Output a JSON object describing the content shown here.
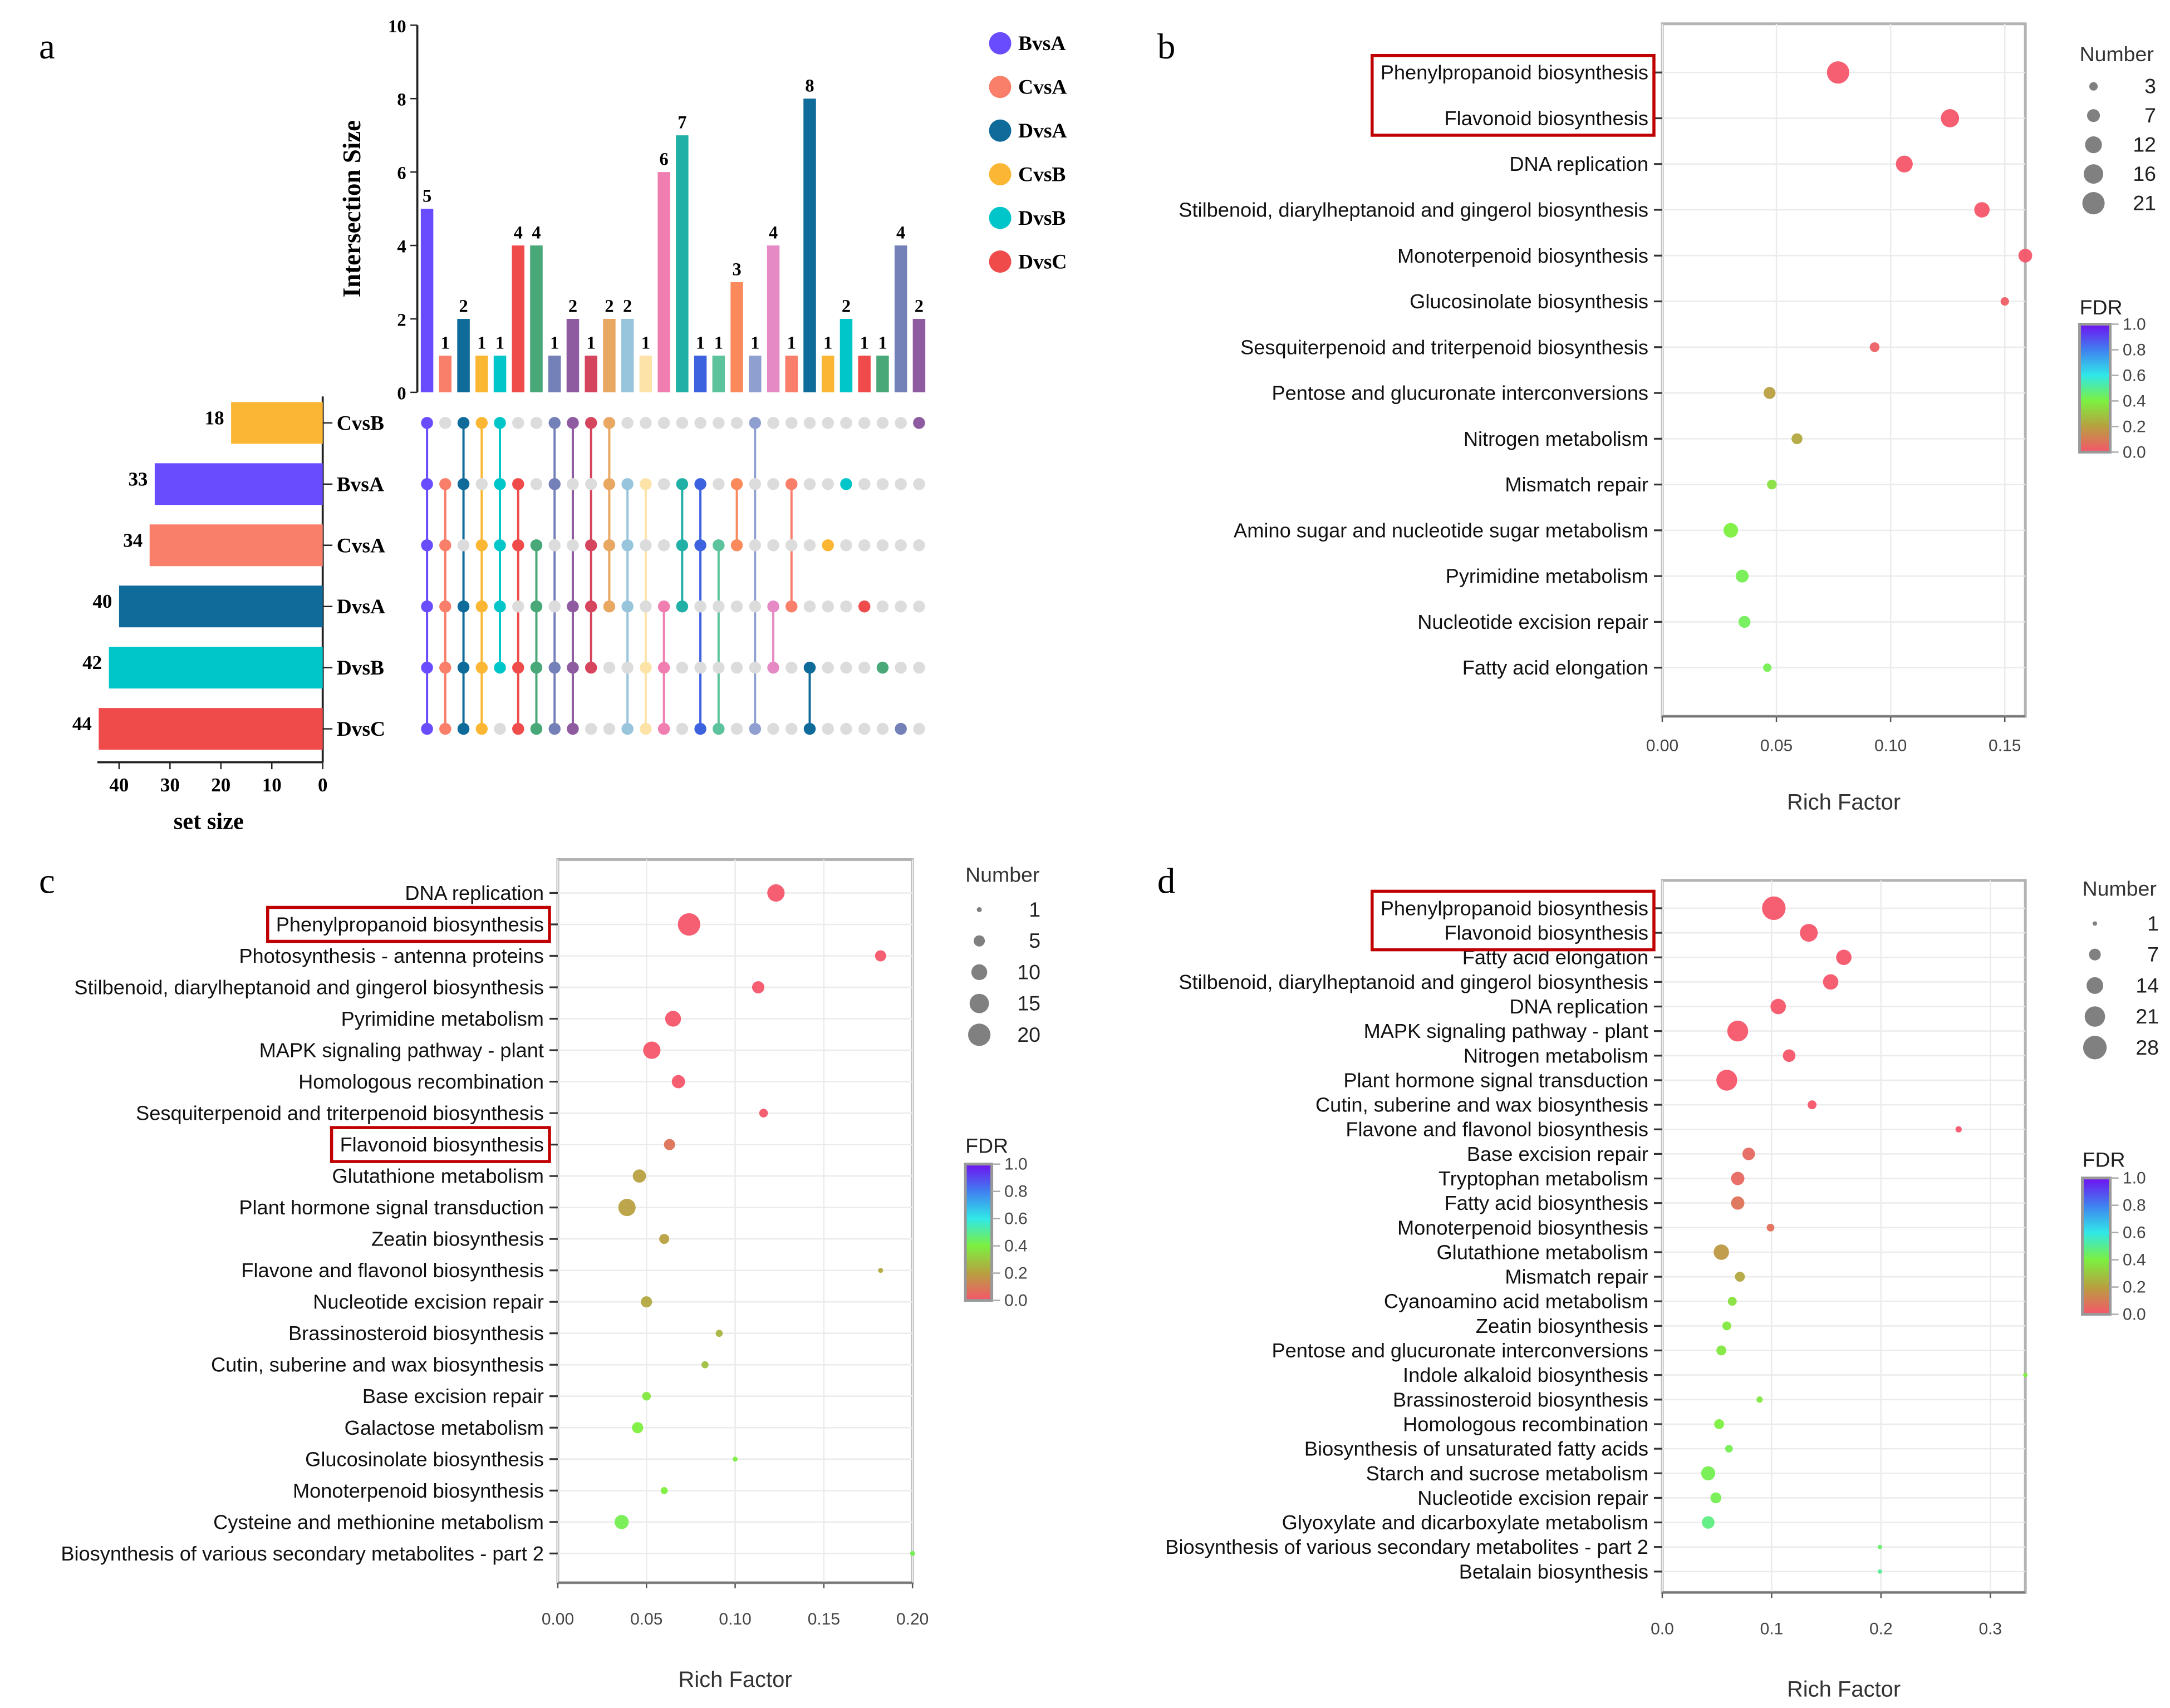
{
  "panel_letters": [
    "a",
    "b",
    "c",
    "d"
  ],
  "chart_data": [
    {
      "type": "bar",
      "panel": "a",
      "ylabel": "Intersection Size",
      "ylim": [
        0,
        10
      ],
      "yticks": [
        0,
        2,
        4,
        6,
        8,
        10
      ],
      "sets": [
        {
          "name": "CvsB",
          "size": 18,
          "color": "#fbb733"
        },
        {
          "name": "BvsA",
          "size": 33,
          "color": "#6a4cff"
        },
        {
          "name": "CvsA",
          "size": 34,
          "color": "#fa7f6a"
        },
        {
          "name": "DvsA",
          "size": 40,
          "color": "#0e6b9a"
        },
        {
          "name": "DvsB",
          "size": 42,
          "color": "#00c5c9"
        },
        {
          "name": "DvsC",
          "size": 44,
          "color": "#f04b4b"
        }
      ],
      "set_size_label": "set size",
      "set_size_ticks": [
        40,
        30,
        20,
        10,
        0
      ],
      "legend": [
        {
          "name": "BvsA",
          "color": "#6a4cff"
        },
        {
          "name": "CvsA",
          "color": "#fa7f6a"
        },
        {
          "name": "DvsA",
          "color": "#0e6b9a"
        },
        {
          "name": "CvsB",
          "color": "#fbb733"
        },
        {
          "name": "DvsB",
          "color": "#00c5c9"
        },
        {
          "name": "DvsC",
          "color": "#f04b4b"
        }
      ],
      "intersections": [
        {
          "size": 5,
          "color": "#6a4cff",
          "members": [
            "CvsB",
            "BvsA",
            "CvsA",
            "DvsA",
            "DvsB",
            "DvsC"
          ]
        },
        {
          "size": 1,
          "color": "#fa7f6a",
          "members": [
            "BvsA",
            "CvsA",
            "DvsA",
            "DvsB",
            "DvsC"
          ]
        },
        {
          "size": 2,
          "color": "#0e6b9a",
          "members": [
            "CvsB",
            "BvsA",
            "DvsA",
            "DvsB",
            "DvsC"
          ]
        },
        {
          "size": 1,
          "color": "#fbb733",
          "members": [
            "CvsB",
            "CvsA",
            "DvsA",
            "DvsB",
            "DvsC"
          ]
        },
        {
          "size": 1,
          "color": "#00c5c9",
          "members": [
            "CvsB",
            "BvsA",
            "CvsA",
            "DvsA",
            "DvsB"
          ]
        },
        {
          "size": 4,
          "color": "#f04b4b",
          "members": [
            "BvsA",
            "CvsA",
            "DvsB",
            "DvsC"
          ]
        },
        {
          "size": 4,
          "color": "#48a878",
          "members": [
            "CvsA",
            "DvsA",
            "DvsB",
            "DvsC"
          ]
        },
        {
          "size": 1,
          "color": "#7480b8",
          "members": [
            "CvsB",
            "BvsA",
            "DvsB",
            "DvsC"
          ]
        },
        {
          "size": 2,
          "color": "#8e5aa0",
          "members": [
            "CvsB",
            "DvsA",
            "DvsB",
            "DvsC"
          ]
        },
        {
          "size": 1,
          "color": "#d6455e",
          "members": [
            "CvsB",
            "CvsA",
            "DvsA",
            "DvsB"
          ]
        },
        {
          "size": 2,
          "color": "#e8a862",
          "members": [
            "CvsB",
            "BvsA",
            "CvsA",
            "DvsA"
          ]
        },
        {
          "size": 2,
          "color": "#98c4dc",
          "members": [
            "BvsA",
            "CvsA",
            "DvsA",
            "DvsC"
          ]
        },
        {
          "size": 1,
          "color": "#fde3a8",
          "members": [
            "BvsA",
            "DvsB",
            "DvsC"
          ]
        },
        {
          "size": 6,
          "color": "#f07eb0",
          "members": [
            "DvsA",
            "DvsB",
            "DvsC"
          ]
        },
        {
          "size": 7,
          "color": "#20b0a6",
          "members": [
            "BvsA",
            "CvsA",
            "DvsA"
          ]
        },
        {
          "size": 1,
          "color": "#3d62e0",
          "members": [
            "BvsA",
            "CvsA",
            "DvsC"
          ]
        },
        {
          "size": 1,
          "color": "#5cc39c",
          "members": [
            "CvsA",
            "DvsC"
          ]
        },
        {
          "size": 3,
          "color": "#fa8a5c",
          "members": [
            "BvsA",
            "CvsA"
          ]
        },
        {
          "size": 1,
          "color": "#8e9fd0",
          "members": [
            "CvsB",
            "DvsC"
          ]
        },
        {
          "size": 4,
          "color": "#e58ac4",
          "members": [
            "DvsA",
            "DvsB"
          ]
        },
        {
          "size": 1,
          "color": "#fa7f6a",
          "members": [
            "BvsA",
            "DvsA"
          ]
        },
        {
          "size": 8,
          "color": "#0e6b9a",
          "members": [
            "DvsB",
            "DvsC"
          ]
        },
        {
          "size": 1,
          "color": "#fbb733",
          "members": [
            "CvsA"
          ]
        },
        {
          "size": 2,
          "color": "#00c5c9",
          "members": [
            "BvsA"
          ]
        },
        {
          "size": 1,
          "color": "#f04b4b",
          "members": [
            "DvsA"
          ]
        },
        {
          "size": 1,
          "color": "#48a878",
          "members": [
            "DvsB"
          ]
        },
        {
          "size": 4,
          "color": "#7480b8",
          "members": [
            "DvsC"
          ]
        },
        {
          "size": 2,
          "color": "#8e5aa0",
          "members": [
            "CvsB"
          ]
        }
      ]
    },
    {
      "type": "scatter",
      "panel": "b",
      "xlabel": "Rich Factor",
      "xticks": [
        "0.00",
        "0.05",
        "0.10",
        "0.15"
      ],
      "xlim": [
        0,
        0.159
      ],
      "size_legend_title": "Number",
      "size_legend": [
        3,
        7,
        12,
        16,
        21
      ],
      "color_legend_title": "FDR",
      "color_ticks": [
        "1.0",
        "0.8",
        "0.6",
        "0.4",
        "0.2",
        "0.0"
      ],
      "points": [
        {
          "term": "Phenylpropanoid biosynthesis",
          "rich_factor": 0.077,
          "number": 21,
          "fdr": 0.0,
          "highlighted": true
        },
        {
          "term": "Flavonoid biosynthesis",
          "rich_factor": 0.126,
          "number": 14,
          "fdr": 0.0,
          "highlighted": true
        },
        {
          "term": "DNA replication",
          "rich_factor": 0.106,
          "number": 12,
          "fdr": 0.0
        },
        {
          "term": "Stilbenoid, diarylheptanoid and gingerol biosynthesis",
          "rich_factor": 0.14,
          "number": 10,
          "fdr": 0.0
        },
        {
          "term": "Monoterpenoid biosynthesis",
          "rich_factor": 0.159,
          "number": 8,
          "fdr": 0.0
        },
        {
          "term": "Glucosinolate biosynthesis",
          "rich_factor": 0.15,
          "number": 3,
          "fdr": 0.02
        },
        {
          "term": "Sesquiterpenoid and triterpenoid biosynthesis",
          "rich_factor": 0.093,
          "number": 4,
          "fdr": 0.03
        },
        {
          "term": "Pentose and glucuronate interconversions",
          "rich_factor": 0.047,
          "number": 6,
          "fdr": 0.2
        },
        {
          "term": "Nitrogen metabolism",
          "rich_factor": 0.059,
          "number": 5,
          "fdr": 0.22
        },
        {
          "term": "Mismatch repair",
          "rich_factor": 0.048,
          "number": 4,
          "fdr": 0.36
        },
        {
          "term": "Amino sugar and nucleotide sugar metabolism",
          "rich_factor": 0.03,
          "number": 9,
          "fdr": 0.4
        },
        {
          "term": "Pyrimidine metabolism",
          "rich_factor": 0.035,
          "number": 7,
          "fdr": 0.42
        },
        {
          "term": "Nucleotide excision repair",
          "rich_factor": 0.036,
          "number": 6,
          "fdr": 0.43
        },
        {
          "term": "Fatty acid elongation",
          "rich_factor": 0.046,
          "number": 3,
          "fdr": 0.42
        }
      ]
    },
    {
      "type": "scatter",
      "panel": "c",
      "xlabel": "Rich Factor",
      "xticks": [
        "0.00",
        "0.05",
        "0.10",
        "0.15",
        "0.20"
      ],
      "xlim": [
        0,
        0.2
      ],
      "size_legend_title": "Number",
      "size_legend": [
        1,
        5,
        10,
        15,
        20
      ],
      "color_legend_title": "FDR",
      "color_ticks": [
        "1.0",
        "0.8",
        "0.6",
        "0.4",
        "0.2",
        "0.0"
      ],
      "points": [
        {
          "term": "DNA replication",
          "rich_factor": 0.123,
          "number": 12,
          "fdr": 0.0
        },
        {
          "term": "Phenylpropanoid biosynthesis",
          "rich_factor": 0.074,
          "number": 20,
          "fdr": 0.0,
          "highlighted": true
        },
        {
          "term": "Photosynthesis - antenna proteins",
          "rich_factor": 0.182,
          "number": 5,
          "fdr": 0.0
        },
        {
          "term": "Stilbenoid, diarylheptanoid and gingerol biosynthesis",
          "rich_factor": 0.113,
          "number": 6,
          "fdr": 0.0
        },
        {
          "term": "Pyrimidine metabolism",
          "rich_factor": 0.065,
          "number": 10,
          "fdr": 0.0
        },
        {
          "term": "MAPK signaling pathway - plant",
          "rich_factor": 0.053,
          "number": 12,
          "fdr": 0.0
        },
        {
          "term": "Homologous recombination",
          "rich_factor": 0.068,
          "number": 7,
          "fdr": 0.0
        },
        {
          "term": "Sesquiterpenoid and triterpenoid biosynthesis",
          "rich_factor": 0.116,
          "number": 3,
          "fdr": 0.0
        },
        {
          "term": "Flavonoid biosynthesis",
          "rich_factor": 0.063,
          "number": 5,
          "fdr": 0.08,
          "highlighted": true
        },
        {
          "term": "Glutathione metabolism",
          "rich_factor": 0.046,
          "number": 7,
          "fdr": 0.2
        },
        {
          "term": "Plant hormone signal transduction",
          "rich_factor": 0.039,
          "number": 12,
          "fdr": 0.2
        },
        {
          "term": "Zeatin biosynthesis",
          "rich_factor": 0.06,
          "number": 4,
          "fdr": 0.2
        },
        {
          "term": "Flavone and flavonol biosynthesis",
          "rich_factor": 0.182,
          "number": 1,
          "fdr": 0.22
        },
        {
          "term": "Nucleotide excision repair",
          "rich_factor": 0.05,
          "number": 5,
          "fdr": 0.22
        },
        {
          "term": "Brassinosteroid biosynthesis",
          "rich_factor": 0.091,
          "number": 2,
          "fdr": 0.25
        },
        {
          "term": "Cutin, suberine and wax biosynthesis",
          "rich_factor": 0.083,
          "number": 2,
          "fdr": 0.28
        },
        {
          "term": "Base excision repair",
          "rich_factor": 0.05,
          "number": 3,
          "fdr": 0.38
        },
        {
          "term": "Galactose metabolism",
          "rich_factor": 0.045,
          "number": 5,
          "fdr": 0.4
        },
        {
          "term": "Glucosinolate biosynthesis",
          "rich_factor": 0.1,
          "number": 1,
          "fdr": 0.4
        },
        {
          "term": "Monoterpenoid biosynthesis",
          "rich_factor": 0.06,
          "number": 2,
          "fdr": 0.4
        },
        {
          "term": "Cysteine and methionine metabolism",
          "rich_factor": 0.036,
          "number": 8,
          "fdr": 0.42
        },
        {
          "term": "Biosynthesis of various secondary metabolites - part 2",
          "rich_factor": 0.2,
          "number": 1,
          "fdr": 0.42
        }
      ]
    },
    {
      "type": "scatter",
      "panel": "d",
      "xlabel": "Rich Factor",
      "xticks": [
        "0.0",
        "0.1",
        "0.2",
        "0.3"
      ],
      "xlim": [
        0,
        0.332
      ],
      "size_legend_title": "Number",
      "size_legend": [
        1,
        7,
        14,
        21,
        28
      ],
      "color_legend_title": "FDR",
      "color_ticks": [
        "1.0",
        "0.8",
        "0.6",
        "0.4",
        "0.2",
        "0.0"
      ],
      "points": [
        {
          "term": "Phenylpropanoid biosynthesis",
          "rich_factor": 0.102,
          "number": 28,
          "fdr": 0.0,
          "highlighted": true
        },
        {
          "term": "Flavonoid biosynthesis",
          "rich_factor": 0.134,
          "number": 16,
          "fdr": 0.0,
          "highlighted": true
        },
        {
          "term": "Fatty acid elongation",
          "rich_factor": 0.166,
          "number": 12,
          "fdr": 0.0
        },
        {
          "term": "Stilbenoid, diarylheptanoid and gingerol biosynthesis",
          "rich_factor": 0.154,
          "number": 12,
          "fdr": 0.0
        },
        {
          "term": "DNA replication",
          "rich_factor": 0.106,
          "number": 12,
          "fdr": 0.0
        },
        {
          "term": "MAPK signaling pathway - plant",
          "rich_factor": 0.069,
          "number": 22,
          "fdr": 0.0
        },
        {
          "term": "Nitrogen metabolism",
          "rich_factor": 0.116,
          "number": 8,
          "fdr": 0.0
        },
        {
          "term": "Plant hormone signal transduction",
          "rich_factor": 0.059,
          "number": 22,
          "fdr": 0.0
        },
        {
          "term": "Cutin, suberine and wax biosynthesis",
          "rich_factor": 0.137,
          "number": 4,
          "fdr": 0.0
        },
        {
          "term": "Flavone and flavonol biosynthesis",
          "rich_factor": 0.271,
          "number": 2,
          "fdr": 0.0
        },
        {
          "term": "Base excision repair",
          "rich_factor": 0.079,
          "number": 8,
          "fdr": 0.05
        },
        {
          "term": "Tryptophan metabolism",
          "rich_factor": 0.069,
          "number": 9,
          "fdr": 0.05
        },
        {
          "term": "Fatty acid biosynthesis",
          "rich_factor": 0.069,
          "number": 9,
          "fdr": 0.08
        },
        {
          "term": "Monoterpenoid biosynthesis",
          "rich_factor": 0.099,
          "number": 3,
          "fdr": 0.07
        },
        {
          "term": "Glutathione metabolism",
          "rich_factor": 0.054,
          "number": 12,
          "fdr": 0.18
        },
        {
          "term": "Mismatch repair",
          "rich_factor": 0.071,
          "number": 5,
          "fdr": 0.22
        },
        {
          "term": "Cyanoamino acid metabolism",
          "rich_factor": 0.064,
          "number": 4,
          "fdr": 0.36
        },
        {
          "term": "Zeatin biosynthesis",
          "rich_factor": 0.059,
          "number": 4,
          "fdr": 0.38
        },
        {
          "term": "Pentose and glucuronate interconversions",
          "rich_factor": 0.054,
          "number": 5,
          "fdr": 0.38
        },
        {
          "term": "Indole alkaloid biosynthesis",
          "rich_factor": 0.332,
          "number": 1,
          "fdr": 0.4
        },
        {
          "term": "Brassinosteroid biosynthesis",
          "rich_factor": 0.089,
          "number": 2,
          "fdr": 0.38
        },
        {
          "term": "Homologous recombination",
          "rich_factor": 0.052,
          "number": 5,
          "fdr": 0.4
        },
        {
          "term": "Biosynthesis of unsaturated fatty acids",
          "rich_factor": 0.061,
          "number": 3,
          "fdr": 0.42
        },
        {
          "term": "Starch and sucrose metabolism",
          "rich_factor": 0.042,
          "number": 10,
          "fdr": 0.42
        },
        {
          "term": "Nucleotide excision repair",
          "rich_factor": 0.049,
          "number": 6,
          "fdr": 0.42
        },
        {
          "term": "Glyoxylate and dicarboxylate metabolism",
          "rich_factor": 0.042,
          "number": 8,
          "fdr": 0.48
        },
        {
          "term": "Biosynthesis of various secondary metabolites - part 2",
          "rich_factor": 0.199,
          "number": 1,
          "fdr": 0.45
        },
        {
          "term": "Betalain biosynthesis",
          "rich_factor": 0.199,
          "number": 1,
          "fdr": 0.5
        }
      ]
    }
  ],
  "colors": {
    "fdr_gradient": [
      "#f5556a",
      "#b8a040",
      "#7cf040",
      "#30e8e8",
      "#4080f0",
      "#7010f0"
    ],
    "non_member_dot": "#dcdcdc",
    "highlight_box": "#c00000",
    "legend_dot": "#808080"
  }
}
